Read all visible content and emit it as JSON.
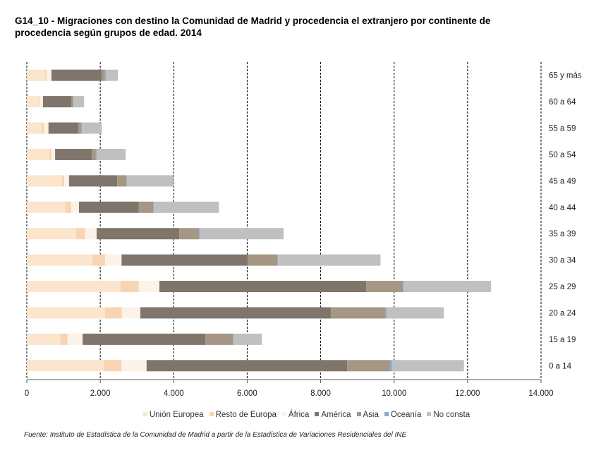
{
  "title": "G14_10 - Migraciones con destino la Comunidad de Madrid y procedencia el extranjero por continente de procedencia según grupos de edad. 2014",
  "source": "Fuente: Instituto de Estadística de la Comunidad de Madrid a partir de la Estadística de Variaciones Residenciales del  INE",
  "chart_data": {
    "type": "bar",
    "orientation": "horizontal",
    "stacked": true,
    "title": "G14_10 - Migraciones con destino la Comunidad de Madrid y procedencia el extranjero por continente de procedencia según grupos de edad. 2014",
    "xlabel": "",
    "ylabel": "",
    "xlim": [
      0,
      14000
    ],
    "x_ticks": [
      0,
      2000,
      4000,
      6000,
      8000,
      10000,
      12000,
      14000
    ],
    "x_tick_labels": [
      "0",
      "2.000",
      "4.000",
      "6.000",
      "8.000",
      "10.000",
      "12.000",
      "14.000"
    ],
    "grid": "vertical dashed",
    "category_axis_side": "right",
    "legend_position": "bottom",
    "categories": [
      "0 a 14",
      "15 a 19",
      "20 a 24",
      "25 a 29",
      "30 a 34",
      "35 a 39",
      "40 a 44",
      "45 a 49",
      "50 a 54",
      "55 a 59",
      "60 a 64",
      "65 y más"
    ],
    "series": [
      {
        "name": "Unión Europea",
        "color": "#fbe5cd",
        "values": [
          2100,
          920,
          2130,
          2550,
          1790,
          1340,
          1040,
          960,
          610,
          400,
          350,
          500
        ]
      },
      {
        "name": "Resto de Europa",
        "color": "#f8d4b2",
        "values": [
          480,
          190,
          460,
          500,
          340,
          250,
          170,
          60,
          60,
          60,
          20,
          40
        ]
      },
      {
        "name": "África",
        "color": "#fcf3e8",
        "values": [
          680,
          410,
          500,
          560,
          450,
          310,
          210,
          130,
          100,
          130,
          70,
          130
        ]
      },
      {
        "name": "América",
        "color": "#7f756a",
        "values": [
          5460,
          3340,
          5190,
          5630,
          3430,
          2250,
          1630,
          1310,
          1000,
          810,
          770,
          1370
        ]
      },
      {
        "name": "Asia",
        "color": "#a69684",
        "values": [
          1160,
          750,
          1480,
          1000,
          810,
          540,
          390,
          250,
          110,
          60,
          60,
          80
        ]
      },
      {
        "name": "Oceanía",
        "color": "#8ea7c6",
        "values": [
          60,
          20,
          40,
          20,
          20,
          30,
          20,
          20,
          20,
          40,
          0,
          30
        ]
      },
      {
        "name": "No consta",
        "color": "#c0c0c0",
        "values": [
          1960,
          770,
          1550,
          2380,
          2790,
          2270,
          1770,
          1270,
          790,
          540,
          290,
          330
        ]
      }
    ]
  }
}
